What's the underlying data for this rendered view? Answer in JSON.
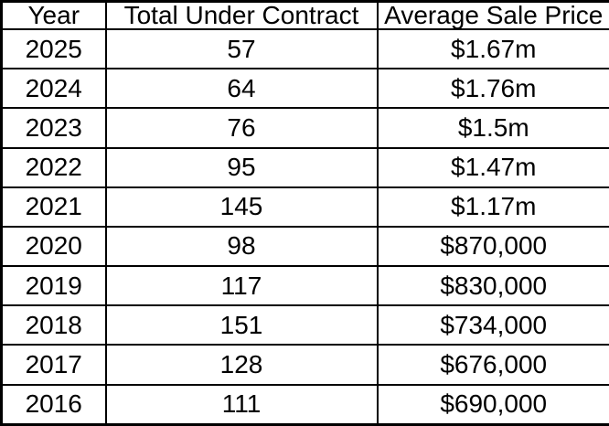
{
  "colors": {
    "border": "#000000",
    "text": "#000000",
    "background": "#ffffff"
  },
  "chart_data": {
    "type": "table",
    "columns": [
      "Year",
      "Total Under Contract",
      "Average Sale Price"
    ],
    "rows": [
      [
        "2025",
        "57",
        "$1.67m"
      ],
      [
        "2024",
        "64",
        "$1.76m"
      ],
      [
        "2023",
        "76",
        "$1.5m"
      ],
      [
        "2022",
        "95",
        "$1.47m"
      ],
      [
        "2021",
        "145",
        "$1.17m"
      ],
      [
        "2020",
        "98",
        "$870,000"
      ],
      [
        "2019",
        "117",
        "$830,000"
      ],
      [
        "2018",
        "151",
        "$734,000"
      ],
      [
        "2017",
        "128",
        "$676,000"
      ],
      [
        "2016",
        "111",
        "$690,000"
      ]
    ],
    "categories": [
      "2025",
      "2024",
      "2023",
      "2022",
      "2021",
      "2020",
      "2019",
      "2018",
      "2017",
      "2016"
    ],
    "series": [
      {
        "name": "Total Under Contract",
        "values": [
          57,
          64,
          76,
          95,
          145,
          98,
          117,
          151,
          128,
          111
        ]
      },
      {
        "name": "Average Sale Price",
        "unit": "USD",
        "values": [
          1670000,
          1760000,
          1500000,
          1470000,
          1170000,
          870000,
          830000,
          734000,
          676000,
          690000
        ]
      }
    ]
  }
}
